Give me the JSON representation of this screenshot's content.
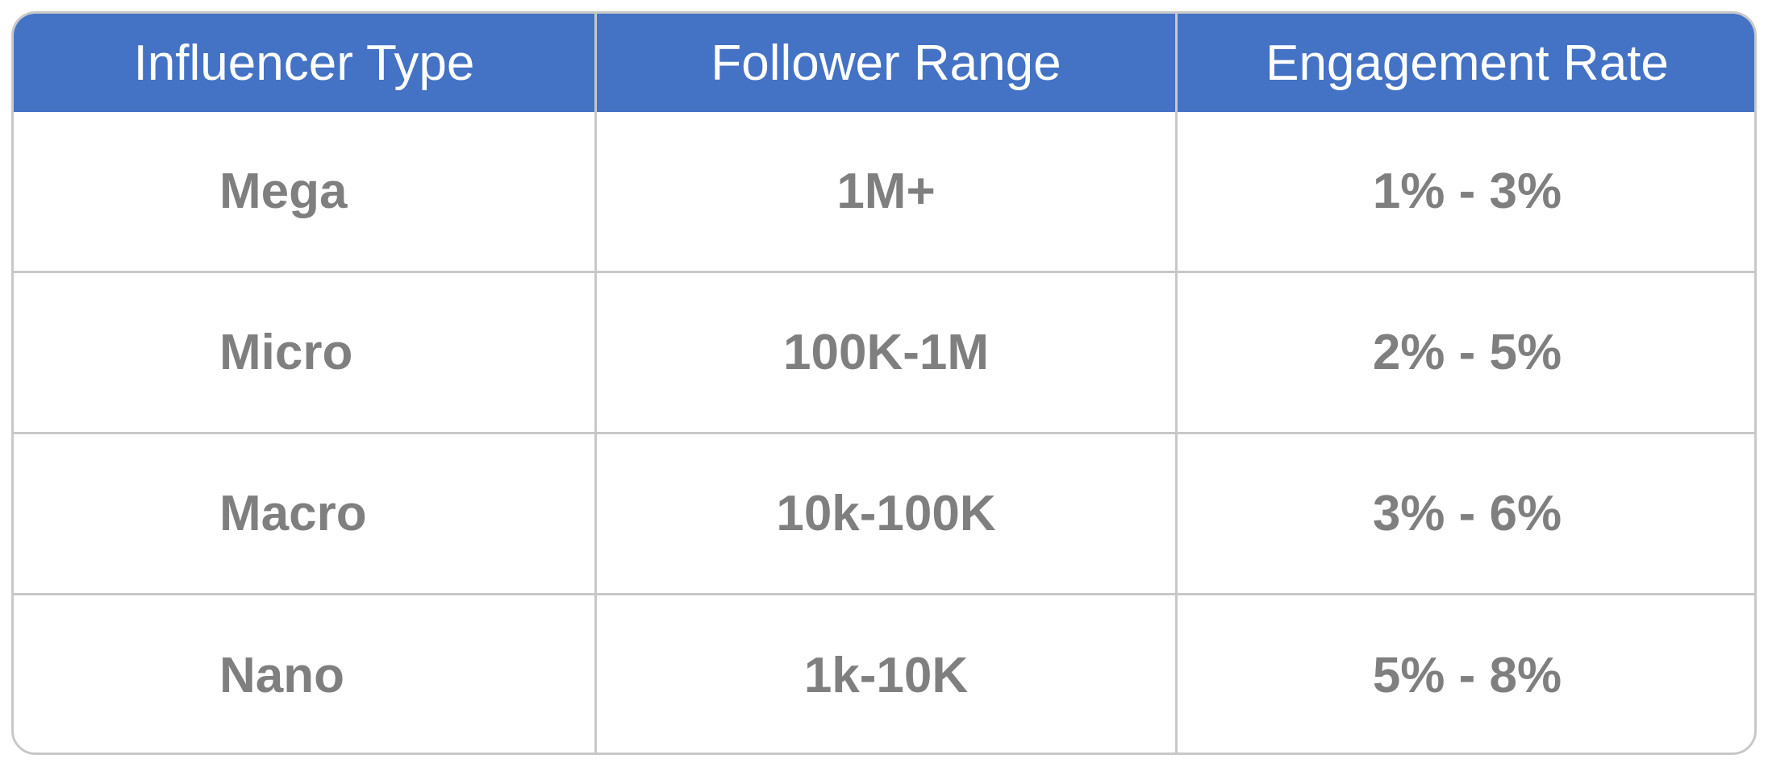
{
  "chart_data": {
    "type": "table",
    "columns": [
      "Influencer Type",
      "Follower Range",
      "Engagement Rate"
    ],
    "rows": [
      [
        "Mega",
        "1M+",
        "1% - 3%"
      ],
      [
        "Micro",
        "100K-1M",
        "2% - 5%"
      ],
      [
        "Macro",
        "10k-100K",
        "3% - 6%"
      ],
      [
        "Nano",
        "1k-10K",
        "5% - 8%"
      ]
    ]
  },
  "colors": {
    "header_background": "#4472c4",
    "header_text": "#ffffff",
    "body_text": "#7f7f7f",
    "border": "#c8c8c8"
  }
}
